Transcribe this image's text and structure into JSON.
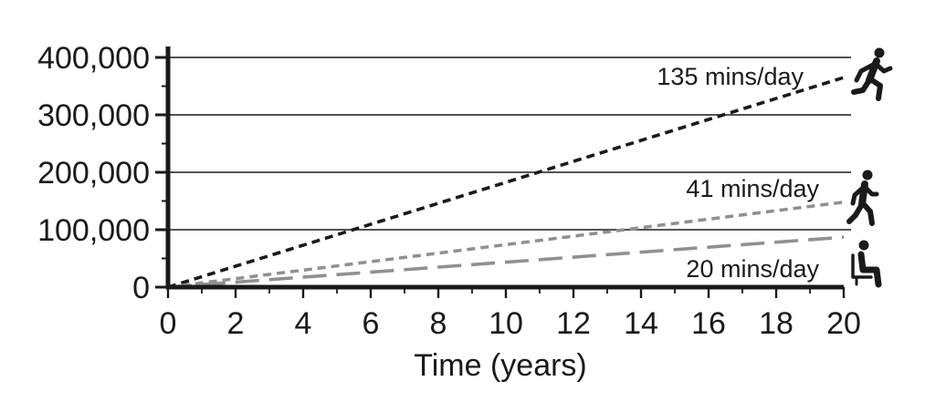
{
  "chart_data": {
    "type": "line",
    "title": "",
    "xlabel": "Time (years)",
    "ylabel": "",
    "xlim": [
      0,
      20
    ],
    "ylim": [
      0,
      400000
    ],
    "x_ticks": [
      0,
      2,
      4,
      6,
      8,
      10,
      12,
      14,
      16,
      18,
      20
    ],
    "x_tick_labels": [
      "0",
      "2",
      "4",
      "6",
      "8",
      "10",
      "12",
      "14",
      "16",
      "18",
      "20"
    ],
    "y_ticks": [
      0,
      100000,
      200000,
      300000,
      400000
    ],
    "y_tick_labels": [
      "0",
      "100,000",
      "200,000",
      "300,000",
      "400,000"
    ],
    "grid": "horizontal",
    "series": [
      {
        "name": "135 mins/day",
        "x": [
          0,
          20
        ],
        "y": [
          0,
          365000
        ],
        "color": "#1a1a1a",
        "dash": "short",
        "icon": "running-person-icon"
      },
      {
        "name": "41 mins/day",
        "x": [
          0,
          20
        ],
        "y": [
          0,
          148000
        ],
        "color": "#909090",
        "dash": "short",
        "icon": "walking-person-icon"
      },
      {
        "name": "20 mins/day",
        "x": [
          0,
          20
        ],
        "y": [
          0,
          87000
        ],
        "color": "#909090",
        "dash": "long",
        "icon": "seated-person-icon"
      }
    ]
  }
}
